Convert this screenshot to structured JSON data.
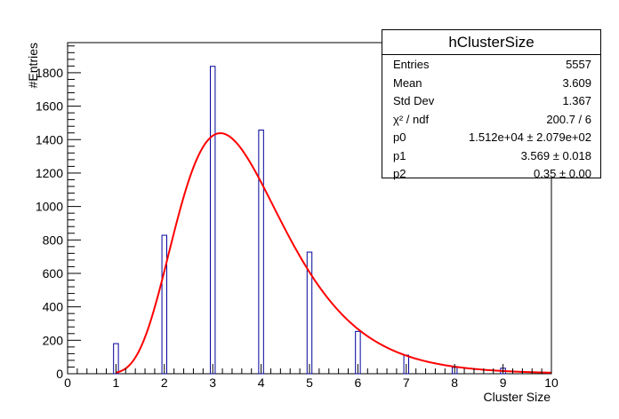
{
  "chart_data": {
    "type": "bar",
    "title": "hClusterSize",
    "xlabel": "Cluster Size",
    "ylabel": "#Entries",
    "xlim": [
      0,
      10
    ],
    "ylim": [
      0,
      1980
    ],
    "x_ticks": [
      "0",
      "1",
      "2",
      "3",
      "4",
      "5",
      "6",
      "7",
      "8",
      "9",
      "10"
    ],
    "y_ticks": [
      "0",
      "200",
      "400",
      "600",
      "800",
      "1000",
      "1200",
      "1400",
      "1600",
      "1800"
    ],
    "bar_color": "#000099",
    "fit_color": "#ff0000",
    "bins": [
      {
        "x": 1,
        "value": 180
      },
      {
        "x": 2,
        "value": 828
      },
      {
        "x": 3,
        "value": 1838
      },
      {
        "x": 4,
        "value": 1457
      },
      {
        "x": 5,
        "value": 727
      },
      {
        "x": 6,
        "value": 253
      },
      {
        "x": 7,
        "value": 111
      },
      {
        "x": 8,
        "value": 38
      },
      {
        "x": 9,
        "value": 33
      }
    ],
    "fit": {
      "p0": 15120,
      "p1": 3.569,
      "p2": 0.35,
      "range": [
        1,
        10
      ]
    }
  },
  "stats_box": {
    "title": "hClusterSize",
    "rows": [
      {
        "key": "Entries",
        "value": "5557"
      },
      {
        "key": "Mean",
        "value": "3.609"
      },
      {
        "key": "Std Dev",
        "value": "1.367"
      },
      {
        "key": "χ² / ndf",
        "value": "200.7 / 6"
      },
      {
        "key": "p0",
        "value": "1.512e+04 ± 2.079e+02"
      },
      {
        "key": "p1",
        "value": "3.569 ± 0.018"
      },
      {
        "key": "p2",
        "value": "0.35 ± 0.00"
      }
    ]
  }
}
